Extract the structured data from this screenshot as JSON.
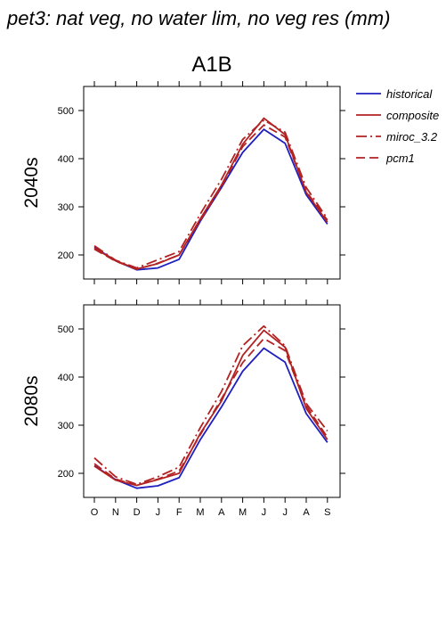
{
  "title": "pet3: nat veg, no water lim, no veg res (mm)",
  "chart_data": {
    "type": "line",
    "scenario": "A1B",
    "months": [
      "O",
      "N",
      "D",
      "J",
      "F",
      "M",
      "A",
      "M",
      "J",
      "J",
      "A",
      "S"
    ],
    "ylim": [
      150,
      550
    ],
    "yticks": [
      200,
      300,
      400,
      500
    ],
    "legend": {
      "position": "top-right",
      "entries": [
        {
          "name": "historical",
          "color": "#1f1fbf",
          "dash": "solid"
        },
        {
          "name": "composite",
          "color": "#b22222",
          "dash": "solid"
        },
        {
          "name": "miroc_3.2",
          "color": "#b22222",
          "dash": "dashdot"
        },
        {
          "name": "pcm1",
          "color": "#b22222",
          "dash": "dashed"
        }
      ]
    },
    "panels": [
      {
        "label": "2040s",
        "series": [
          {
            "name": "historical",
            "values": [
              216,
              188,
              169,
              173,
              191,
              270,
              340,
              413,
              461,
              432,
              325,
              264
            ]
          },
          {
            "name": "composite",
            "values": [
              214,
              188,
              171,
              182,
              200,
              275,
              345,
              430,
              484,
              450,
              330,
              268
            ]
          },
          {
            "name": "miroc_3.2",
            "values": [
              219,
              189,
              173,
              190,
              207,
              285,
              357,
              440,
              480,
              455,
              340,
              275
            ]
          },
          {
            "name": "pcm1",
            "values": [
              212,
              187,
              170,
              183,
              200,
              272,
              342,
              425,
              470,
              445,
              332,
              272
            ]
          }
        ]
      },
      {
        "label": "2080s",
        "series": [
          {
            "name": "historical",
            "values": [
              216,
              187,
              169,
              174,
              191,
              270,
              338,
              412,
              460,
              431,
              324,
              264
            ]
          },
          {
            "name": "composite",
            "values": [
              215,
              186,
              175,
              187,
              200,
              283,
              350,
              445,
              497,
              462,
              335,
              270
            ]
          },
          {
            "name": "miroc_3.2",
            "values": [
              232,
              193,
              177,
              193,
              213,
              295,
              370,
              465,
              506,
              465,
              345,
              288
            ]
          },
          {
            "name": "pcm1",
            "values": [
              220,
              188,
              175,
              188,
              205,
              280,
              355,
              430,
              480,
              455,
              340,
              275
            ]
          }
        ]
      }
    ]
  }
}
